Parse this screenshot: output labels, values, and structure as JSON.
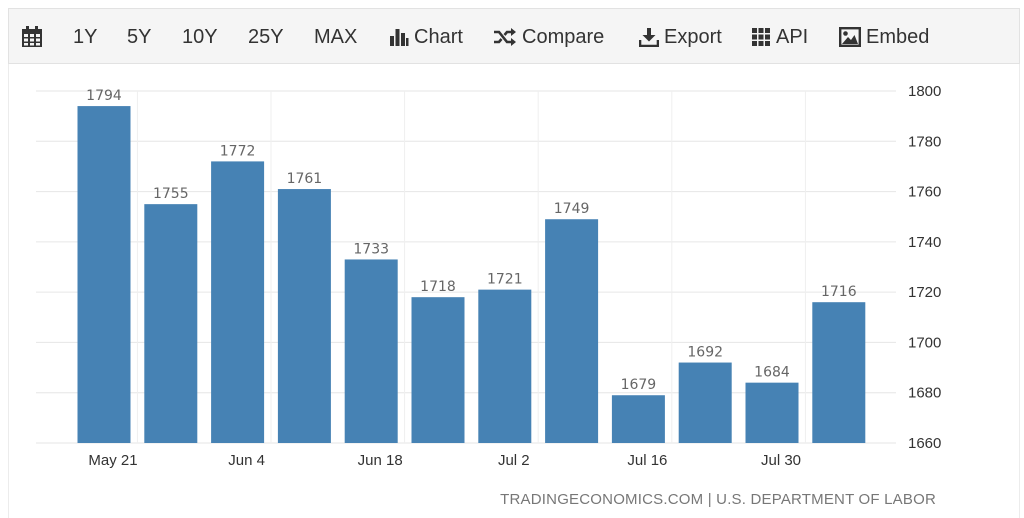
{
  "toolbar": {
    "calendar_icon": "calendar-icon",
    "ranges": [
      "1Y",
      "5Y",
      "10Y",
      "25Y",
      "MAX"
    ],
    "chart_label": "Chart",
    "compare_label": "Compare",
    "export_label": "Export",
    "api_label": "API",
    "embed_label": "Embed",
    "icons": {
      "chart": "bar-chart-icon",
      "compare": "shuffle-icon",
      "export": "download-icon",
      "api": "grid-icon",
      "embed": "image-icon"
    }
  },
  "source": "TRADINGECONOMICS.COM | U.S. DEPARTMENT OF LABOR",
  "colors": {
    "bar": "#4682b4",
    "grid": "#e6e6e6",
    "text": "#333333",
    "label": "#666666"
  },
  "chart_data": {
    "type": "bar",
    "dates": [
      "2021-05-21",
      "2021-05-28",
      "2021-06-04",
      "2021-06-11",
      "2021-06-18",
      "2021-06-25",
      "2021-07-02",
      "2021-07-09",
      "2021-07-16",
      "2021-07-23",
      "2021-07-30",
      "2021-08-06"
    ],
    "values": [
      1794,
      1755,
      1772,
      1761,
      1733,
      1718,
      1721,
      1749,
      1679,
      1692,
      1684,
      1716
    ],
    "data_labels": [
      "1794",
      "1755",
      "1772",
      "1761",
      "1733",
      "1718",
      "1721",
      "1749",
      "1679",
      "1692",
      "1684",
      "1716"
    ],
    "x_ticks": [
      {
        "label": "May 21",
        "index": 0
      },
      {
        "label": "Jun 4",
        "index": 2
      },
      {
        "label": "Jun 18",
        "index": 4
      },
      {
        "label": "Jul 2",
        "index": 6
      },
      {
        "label": "Jul 16",
        "index": 8
      },
      {
        "label": "Jul 30",
        "index": 10
      }
    ],
    "y_ticks": [
      1660,
      1680,
      1700,
      1720,
      1740,
      1760,
      1780,
      1800
    ],
    "ylim": [
      1660,
      1800
    ],
    "y_axis_position": "right",
    "grid": true,
    "title": "",
    "xlabel": "",
    "ylabel": ""
  }
}
